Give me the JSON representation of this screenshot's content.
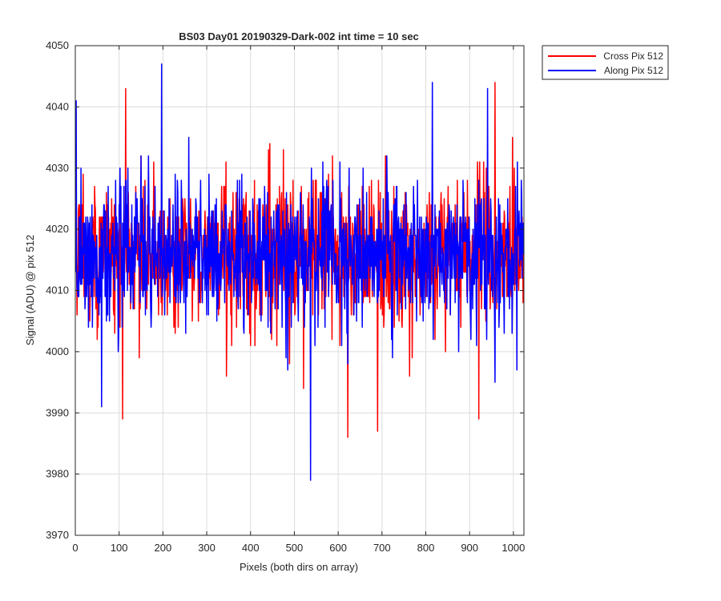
{
  "chart_data": {
    "type": "line",
    "title": "BS03 Day01 20190329-Dark-002 int time = 10 sec",
    "xlabel": "Pixels (both dirs on array)",
    "ylabel": "Signal (ADU) @ pix 512",
    "xlim": [
      0,
      1024
    ],
    "ylim": [
      3970,
      4050
    ],
    "xticks": [
      0,
      100,
      200,
      300,
      400,
      500,
      600,
      700,
      800,
      900,
      1000
    ],
    "yticks": [
      3970,
      3980,
      3990,
      4000,
      4010,
      4020,
      4030,
      4040,
      4050
    ],
    "grid": true,
    "legend_position": "outside-top-right",
    "colors": {
      "cross": "#ff0000",
      "along": "#0000ff"
    },
    "series": [
      {
        "name": "Cross Pix 512",
        "key": "cross",
        "color": "#ff0000",
        "x_start": 1,
        "x_step": 1,
        "n_points": 1024,
        "mean": 4016,
        "std": 6,
        "min": 3986,
        "max": 4044,
        "extremes": [
          {
            "x": 108,
            "y": 3989
          },
          {
            "x": 115,
            "y": 4043
          },
          {
            "x": 622,
            "y": 3986
          },
          {
            "x": 690,
            "y": 3987
          },
          {
            "x": 921,
            "y": 3989
          },
          {
            "x": 958,
            "y": 4044
          }
        ]
      },
      {
        "name": "Along Pix 512",
        "key": "along",
        "color": "#0000ff",
        "x_start": 1,
        "x_step": 1,
        "n_points": 1024,
        "mean": 4016,
        "std": 6,
        "min": 3979,
        "max": 4047,
        "extremes": [
          {
            "x": 2,
            "y": 4041
          },
          {
            "x": 60,
            "y": 3991
          },
          {
            "x": 197,
            "y": 4047
          },
          {
            "x": 537,
            "y": 3979
          },
          {
            "x": 815,
            "y": 4044
          },
          {
            "x": 941,
            "y": 4043
          }
        ]
      }
    ]
  }
}
